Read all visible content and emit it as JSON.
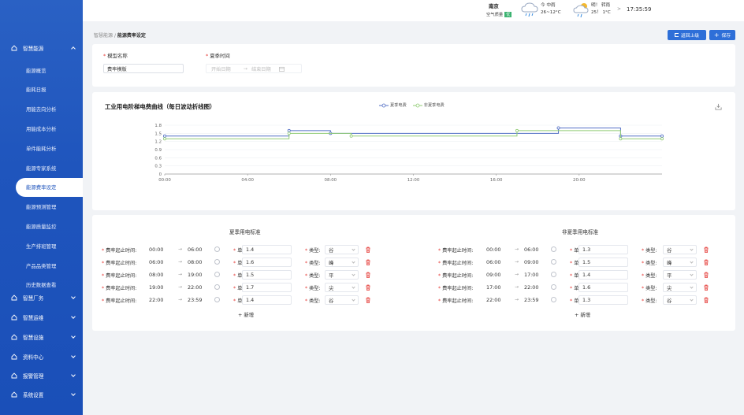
{
  "sidebar": {
    "groups": [
      {
        "label": "智慧能源",
        "icon": "home-icon",
        "expanded": true
      },
      {
        "label": "智慧厂务",
        "icon": "home-icon",
        "expanded": false
      },
      {
        "label": "智慧运维",
        "icon": "home-icon",
        "expanded": false
      },
      {
        "label": "智慧设施",
        "icon": "home-icon",
        "expanded": false
      },
      {
        "label": "资料中心",
        "icon": "home-icon",
        "expanded": false
      },
      {
        "label": "报警管理",
        "icon": "home-icon",
        "expanded": false
      },
      {
        "label": "系统设置",
        "icon": "home-icon",
        "expanded": false
      }
    ],
    "items": [
      "能源概览",
      "能耗日报",
      "用能去向分析",
      "用能成本分析",
      "单件能耗分析",
      "能源专家系统",
      "能源费率设定",
      "能源预测管理",
      "能源质量监控",
      "生产排班管理",
      "产品品类管理",
      "历史数据查看"
    ],
    "active_item": "能源费率设定"
  },
  "topbar": {
    "city": "南京",
    "air_quality_label": "空气质量",
    "air_quality_badge": "优",
    "weather_today_label": "今 中雨",
    "weather_today_temp": "26~12°C",
    "weather_tomorrow_label": "明！ 转雨",
    "weather_tomorrow_temp": "25！ 1°C",
    "arrow": ">",
    "time": "17:35:59"
  },
  "breadcrumb": {
    "parent": "智慧能源",
    "separator": "/",
    "current": "能源费率设定"
  },
  "actions": {
    "back_label": "返回上级",
    "save_label": "保存"
  },
  "form": {
    "model_name_label": "模型名称",
    "model_name_value": "费率模版",
    "summer_time_label": "夏季时间",
    "start_placeholder": "开始日期",
    "range_arrow": "→",
    "end_placeholder": "结束日期"
  },
  "chart_title": "工业用电阶梯电费曲线（每日波动折线图）",
  "chart_data": {
    "type": "line",
    "title": "工业用电阶梯电费曲线（每日波动折线图）",
    "x_ticks": [
      "00:00",
      "04:00",
      "08:00",
      "12:00",
      "16:00",
      "20:00"
    ],
    "y_ticks": [
      "0",
      "0.3",
      "0.6",
      "0.9",
      "1.2",
      "1.5",
      "1.8"
    ],
    "ylim": [
      0,
      1.8
    ],
    "xlim_hours": [
      0,
      24
    ],
    "legend_placement": "top-center",
    "series": [
      {
        "name": "夏季电费",
        "color": "#5470c6",
        "points": [
          [
            0,
            1.4
          ],
          [
            6,
            1.4
          ],
          [
            6,
            1.6
          ],
          [
            8,
            1.6
          ],
          [
            8,
            1.5
          ],
          [
            19,
            1.5
          ],
          [
            19,
            1.7
          ],
          [
            22,
            1.7
          ],
          [
            22,
            1.4
          ],
          [
            24,
            1.4
          ]
        ]
      },
      {
        "name": "非夏季电费",
        "color": "#91cc75",
        "points": [
          [
            0,
            1.3
          ],
          [
            6,
            1.3
          ],
          [
            6,
            1.5
          ],
          [
            9,
            1.5
          ],
          [
            9,
            1.4
          ],
          [
            17,
            1.4
          ],
          [
            17,
            1.6
          ],
          [
            22,
            1.6
          ],
          [
            22,
            1.3
          ],
          [
            24,
            1.3
          ]
        ]
      }
    ]
  },
  "summer": {
    "title": "夏季用电标准",
    "rows": [
      {
        "label": "费率起止时间:",
        "start": "00:00",
        "end": "06:00",
        "price_label": "单价:",
        "price": "1.4",
        "type_label": "类型:",
        "type": "谷"
      },
      {
        "label": "费率起止时间:",
        "start": "06:00",
        "end": "08:00",
        "price_label": "单价:",
        "price": "1.6",
        "type_label": "类型:",
        "type": "峰"
      },
      {
        "label": "费率起止时间:",
        "start": "08:00",
        "end": "19:00",
        "price_label": "单价:",
        "price": "1.5",
        "type_label": "类型:",
        "type": "平"
      },
      {
        "label": "费率起止时间:",
        "start": "19:00",
        "end": "22:00",
        "price_label": "单价:",
        "price": "1.7",
        "type_label": "类型:",
        "type": "尖"
      },
      {
        "label": "费率起止时间:",
        "start": "22:00",
        "end": "23:59",
        "price_label": "单价:",
        "price": "1.4",
        "type_label": "类型:",
        "type": "谷"
      }
    ],
    "add_label": "+ 新增"
  },
  "non_summer": {
    "title": "非夏季用电标准",
    "rows": [
      {
        "label": "费率起止时间:",
        "start": "00:00",
        "end": "06:00",
        "price_label": "单价:",
        "price": "1.3",
        "type_label": "类型:",
        "type": "谷"
      },
      {
        "label": "费率起止时间:",
        "start": "06:00",
        "end": "09:00",
        "price_label": "单价:",
        "price": "1.5",
        "type_label": "类型:",
        "type": "峰"
      },
      {
        "label": "费率起止时间:",
        "start": "09:00",
        "end": "17:00",
        "price_label": "单价:",
        "price": "1.4",
        "type_label": "类型:",
        "type": "平"
      },
      {
        "label": "费率起止时间:",
        "start": "17:00",
        "end": "22:00",
        "price_label": "单价:",
        "price": "1.6",
        "type_label": "类型:",
        "type": "尖"
      },
      {
        "label": "费率起止时间:",
        "start": "22:00",
        "end": "23:59",
        "price_label": "单价:",
        "price": "1.3",
        "type_label": "类型:",
        "type": "谷"
      }
    ],
    "add_label": "+ 新增"
  },
  "row_arrow": "→",
  "colors": {
    "primary": "#2e6fd8",
    "sidebar": "#1f55bd",
    "danger": "#e53935"
  }
}
